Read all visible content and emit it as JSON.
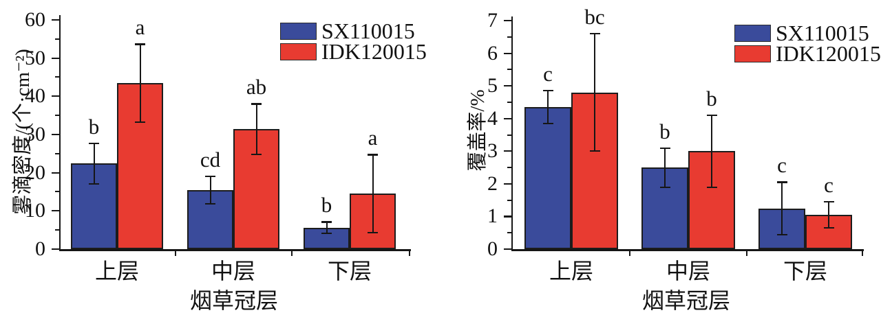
{
  "chart_data": [
    {
      "type": "bar",
      "title": "",
      "ylabel": "雾滴密度/(个·cm⁻²)",
      "xlabel": "烟草冠层",
      "categories": [
        "上层",
        "中层",
        "下层"
      ],
      "category_keys": [
        "upper",
        "middle",
        "lower"
      ],
      "ylim": [
        0,
        60
      ],
      "yticks": [
        0,
        10,
        20,
        30,
        40,
        50,
        60
      ],
      "yminor_step": 5,
      "grid": false,
      "legend_position": "top-right-inside",
      "series": [
        {
          "name": "SX110015",
          "color": "#3a4b9b",
          "values": [
            22.4,
            15.4,
            5.6
          ],
          "errors": [
            5.3,
            3.6,
            1.5
          ],
          "sig_letters": [
            "b",
            "cd",
            "b"
          ]
        },
        {
          "name": "IDK120015",
          "color": "#e83b31",
          "values": [
            43.4,
            31.4,
            14.5
          ],
          "errors": [
            10.2,
            6.6,
            10.2
          ],
          "sig_letters": [
            "a",
            "ab",
            "a"
          ]
        }
      ]
    },
    {
      "type": "bar",
      "title": "",
      "ylabel": "覆盖率/%",
      "xlabel": "烟草冠层",
      "categories": [
        "上层",
        "中层",
        "下层"
      ],
      "category_keys": [
        "upper",
        "middle",
        "lower"
      ],
      "ylim": [
        0,
        7
      ],
      "yticks": [
        0,
        1,
        2,
        3,
        4,
        5,
        6,
        7
      ],
      "yminor_step": 0.5,
      "grid": false,
      "legend_position": "top-right-inside",
      "series": [
        {
          "name": "SX110015",
          "color": "#3a4b9b",
          "values": [
            4.35,
            2.5,
            1.25
          ],
          "errors": [
            0.5,
            0.6,
            0.8
          ],
          "sig_letters": [
            "c",
            "b",
            "c"
          ]
        },
        {
          "name": "IDK120015",
          "color": "#e83b31",
          "values": [
            4.8,
            3.0,
            1.05
          ],
          "errors": [
            1.8,
            1.1,
            0.4
          ],
          "sig_letters": [
            "bc",
            "b",
            "c"
          ]
        }
      ]
    }
  ]
}
